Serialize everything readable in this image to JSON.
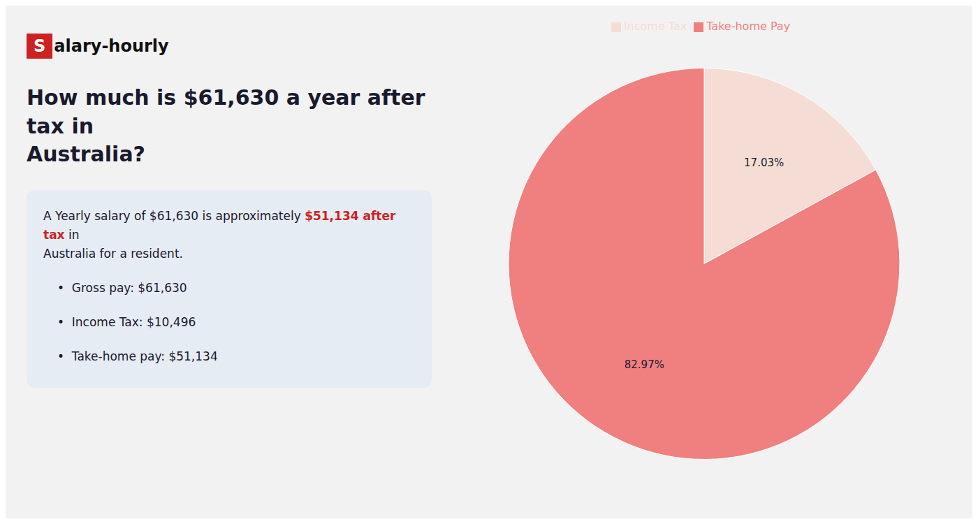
{
  "chart_data": {
    "type": "pie",
    "title": "How much is $61,630 a year after tax in\nAustralia?",
    "categories": [
      "Income Tax",
      "Take-home Pay"
    ],
    "values": [
      17.03,
      82.97
    ],
    "value_labels": [
      "17.03%",
      "82.97%"
    ],
    "colors": [
      "#f5ddd5",
      "#f08080"
    ],
    "data_labels": true,
    "legend": "top",
    "annotations": [
      {
        "text": "S",
        "color": "#cc2222"
      },
      {
        "text": "alary-hourly"
      },
      {
        "text": "A Yearly salary of $61,630 is approximately "
      },
      {
        "text": "$51,134 after tax",
        "color": "#cc2222"
      },
      {
        "text": " in"
      },
      {
        "text": "Australia for a resident."
      },
      {
        "text": "•  Gross pay: $61,630"
      },
      {
        "text": "•  Income Tax: $10,496"
      },
      {
        "text": "•  Take-home pay: $51,134"
      }
    ]
  }
}
